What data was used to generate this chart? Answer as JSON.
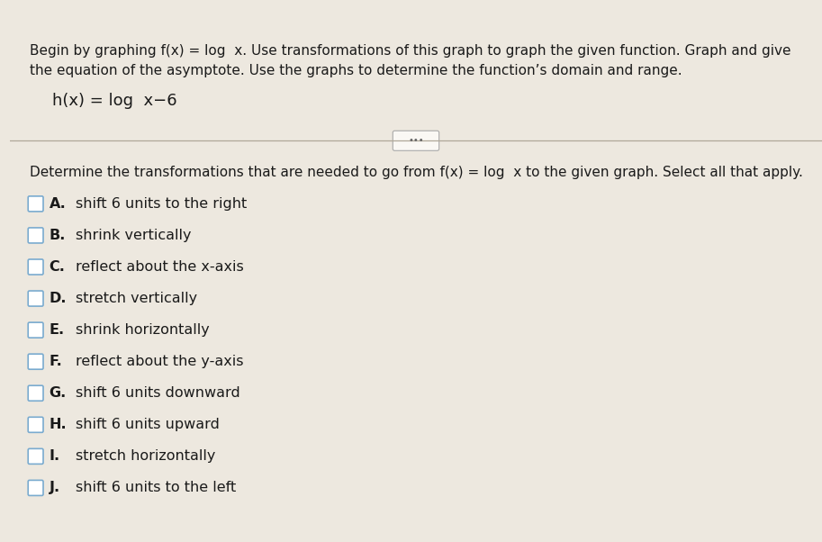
{
  "bg_top_color": "#3aa8c1",
  "bg_page_color": "#ede8df",
  "bg_white_color": "#faf8f4",
  "text_color": "#1a1a1a",
  "header_line1": "Begin by graphing f(x) = log  x. Use transformations of this graph to graph the given function. Graph and give",
  "header_line2": "the equation of the asymptote. Use the graphs to determine the function's domain and range.",
  "function_line": "h(x) = log  x−6",
  "question_line": "Determine the transformations that are needed to go from f(x) = log  x to the given graph. Select all that apply.",
  "options": [
    {
      "letter": "A.",
      "text": "shift 6 units to the right"
    },
    {
      "letter": "B.",
      "text": "shrink vertically"
    },
    {
      "letter": "C.",
      "text": "reflect about the x-axis"
    },
    {
      "letter": "D.",
      "text": "stretch vertically"
    },
    {
      "letter": "E.",
      "text": "shrink horizontally"
    },
    {
      "letter": "F.",
      "text": "reflect about the y-axis"
    },
    {
      "letter": "G.",
      "text": "shift 6 units downward"
    },
    {
      "letter": "H.",
      "text": "shift 6 units upward"
    },
    {
      "letter": "I.",
      "text": "stretch horizontally"
    },
    {
      "letter": "J.",
      "text": "shift 6 units to the left"
    }
  ],
  "checkbox_border": "#7aabcf",
  "divider_color": "#b0a898",
  "left_bar_color": "#555555",
  "font_size_header": 11.0,
  "font_size_function": 13.0,
  "font_size_question": 11.0,
  "font_size_options": 11.5
}
